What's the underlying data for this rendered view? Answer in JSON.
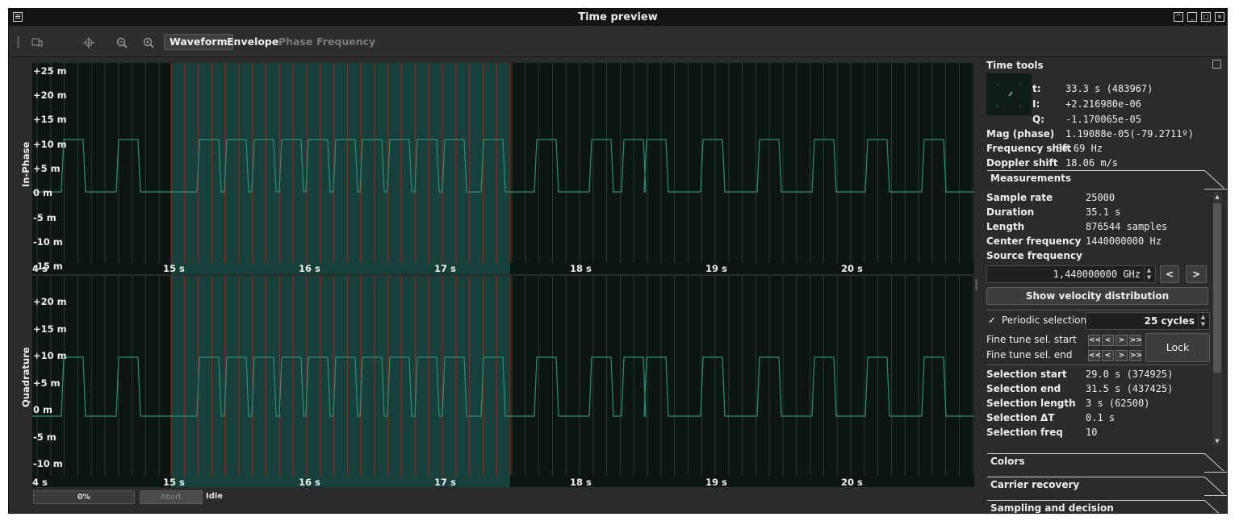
{
  "window": {
    "title": "Time preview",
    "controls": [
      "shade",
      "minimize",
      "maximize",
      "close"
    ]
  },
  "toolbar": {
    "icons": [
      "device-icon",
      "crosshair-icon",
      "zoom-out-icon",
      "zoom-in-icon"
    ],
    "view_buttons": [
      {
        "label": "Waveform",
        "state": "active"
      },
      {
        "label": "Envelope",
        "state": "enabled"
      },
      {
        "label": "Phase",
        "state": "disabled"
      },
      {
        "label": "Frequency",
        "state": "disabled"
      }
    ]
  },
  "plots": {
    "in_phase": {
      "title": "In-Phase",
      "y_ticks": [
        "+25 m",
        "+20 m",
        "+15 m",
        "+10 m",
        "+5 m",
        "0 m",
        "-5 m",
        "-10 m",
        "-15 m"
      ],
      "x_ticks": [
        "15 s",
        "16 s",
        "17 s",
        "18 s",
        "19 s",
        "20 s"
      ],
      "x_partial_label": "4 s"
    },
    "quadrature": {
      "title": "Quadrature",
      "y_ticks": [
        "+20 m",
        "+15 m",
        "+10 m",
        "+5 m",
        "0 m",
        "-5 m",
        "-10 m"
      ],
      "x_ticks": [
        "15 s",
        "16 s",
        "17 s",
        "18 s",
        "19 s",
        "20 s"
      ],
      "x_partial_label": "4 s"
    },
    "colors": {
      "background": "#0b1512",
      "selection": "#17403a",
      "trace": "#2f8f76",
      "marker": "#b01a1a",
      "grid": "#2a3a34"
    }
  },
  "status": {
    "progress": "0%",
    "abort_label": "Abort",
    "state": "Idle"
  },
  "time_tools": {
    "title": "Time tools",
    "rows": [
      {
        "label": "t:",
        "value": "33.3 s (483967)"
      },
      {
        "label": "I:",
        "value": "+2.216980e-06"
      },
      {
        "label": "Q:",
        "value": "-1.170065e-05"
      },
      {
        "label": "Mag (phase)",
        "value": "1.19088e-05(-79.2711º)"
      },
      {
        "label": "Frequency shift",
        "value": "-86.69 Hz"
      },
      {
        "label": "Doppler shift",
        "value": "18.06 m/s"
      }
    ]
  },
  "measurements": {
    "title": "Measurements",
    "rows": [
      {
        "label": "Sample rate",
        "value": "25000"
      },
      {
        "label": "Duration",
        "value": "35.1 s"
      },
      {
        "label": "Length",
        "value": "876544 samples"
      },
      {
        "label": "Center frequency",
        "value": "1440000000 Hz"
      }
    ],
    "source_frequency_label": "Source frequency",
    "source_frequency_value": "1,440000000 GHz",
    "prev_label": "<",
    "next_label": ">",
    "velocity_button": "Show velocity distribution",
    "periodic_label": "Periodic selection",
    "periodic_checked": true,
    "cycles_value": "25 cycles",
    "fine_start_label": "Fine tune sel. start",
    "fine_end_label": "Fine tune sel. end",
    "fine_buttons": [
      "<<",
      "<",
      ">",
      ">>"
    ],
    "lock_label": "Lock",
    "selection_rows": [
      {
        "label": "Selection start",
        "value": "29.0 s (374925)"
      },
      {
        "label": "Selection end",
        "value": "31.5 s (437425)"
      },
      {
        "label": "Selection length",
        "value": "3 s (62500)"
      },
      {
        "label": "Selection ΔT",
        "value": "0.1 s"
      },
      {
        "label": "Selection freq",
        "value": "10"
      }
    ]
  },
  "collapsed_sections": [
    "Colors",
    "Carrier recovery",
    "Sampling and decision"
  ]
}
